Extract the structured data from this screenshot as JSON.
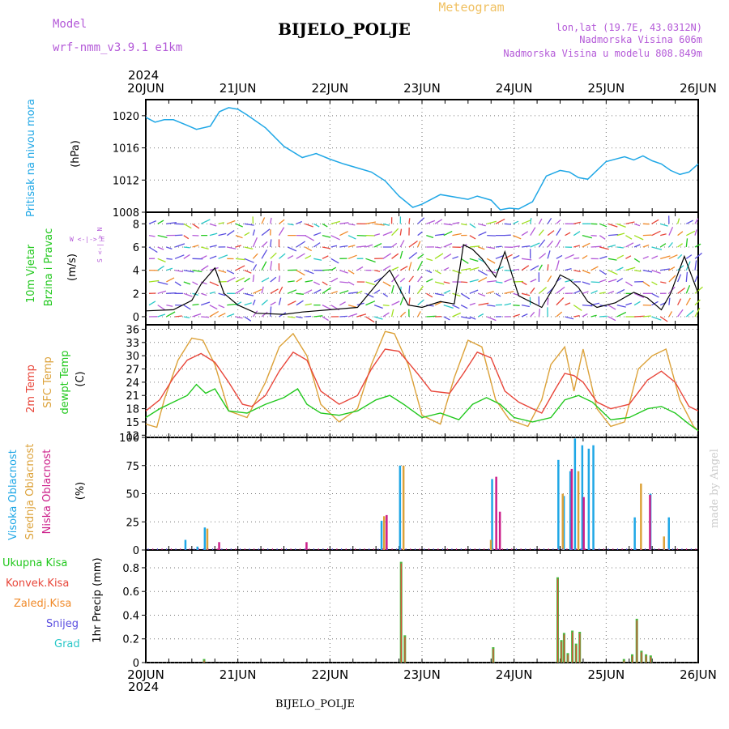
{
  "header": {
    "model_label": "Model",
    "model_name": "wrf-nmm_v3.9.1 e1km",
    "title": "BIJELO_POLJE",
    "meteogram": "Meteogram",
    "lonlat": "lon,lat (19.7E, 43.0312N)",
    "alt1": "Nadmorska Visina 606m",
    "alt2": "Nadmorska Visina u modelu 808.849m",
    "year_top": "2024",
    "year_bottom": "2024",
    "footer": "BIJELO_POLJE",
    "watermark": "made by Angel"
  },
  "colors": {
    "pressure": "#1fa7e6",
    "temp2m": "#e8463a",
    "sfc": "#dca23a",
    "dew": "#22c81e",
    "high": "#5a4ee0",
    "mid": "#dca23a",
    "low": "#cc1f8a",
    "rain_total": "#4cb840",
    "rain_conv": "#e8463a",
    "freezing": "#f08a2a",
    "snow": "#5a4ee0",
    "hail": "#2ac8c8",
    "model": "#b45ad8"
  },
  "chart_data": [
    {
      "type": "line",
      "panel": "pressure",
      "ylabel_1": "Pritisak na nivou mora",
      "ylabel_2": "(hPa)",
      "x_ticks": [
        "20JUN",
        "21JUN",
        "22JUN",
        "23JUN",
        "24JUN",
        "25JUN",
        "26JUN"
      ],
      "ylim": [
        1008,
        1022
      ],
      "yticks": [
        1008,
        1012,
        1016,
        1020
      ],
      "series": [
        {
          "x": [
            0,
            0.1,
            0.2,
            0.3,
            0.45,
            0.55,
            0.7,
            0.8,
            0.9,
            1.0,
            1.1,
            1.3,
            1.5,
            1.7,
            1.85,
            2.0,
            2.15,
            2.3,
            2.45,
            2.6,
            2.75,
            2.9,
            3.0,
            3.2,
            3.4,
            3.5,
            3.6,
            3.75,
            3.85,
            3.95,
            4.05,
            4.2,
            4.35,
            4.5,
            4.6,
            4.7,
            4.8,
            5.0,
            5.2,
            5.3,
            5.4,
            5.5,
            5.6,
            5.7,
            5.8,
            5.9,
            6.0
          ],
          "values": [
            1019.8,
            1019.2,
            1019.5,
            1019.5,
            1018.8,
            1018.3,
            1018.7,
            1020.5,
            1021,
            1020.8,
            1020.1,
            1018.5,
            1016.2,
            1014.8,
            1015.3,
            1014.6,
            1014.0,
            1013.5,
            1013.0,
            1011.9,
            1010.0,
            1008.6,
            1009.0,
            1010.2,
            1009.8,
            1009.6,
            1010.0,
            1009.5,
            1008.3,
            1008.5,
            1008.4,
            1009.3,
            1012.5,
            1013.2,
            1013.0,
            1012.3,
            1012.1,
            1014.3,
            1014.9,
            1014.5,
            1015.0,
            1014.4,
            1014.0,
            1013.2,
            1012.7,
            1013.0,
            1014.0
          ]
        }
      ]
    },
    {
      "type": "line",
      "panel": "wind",
      "ylabel_1": "10m Vjetar",
      "ylabel_2": "Brzina i Pravac",
      "ylabel_3": "(m/s)",
      "compass": "W <-|-> E",
      "compass_ns": "S <-|-> N",
      "ylim": [
        -0.7,
        9
      ],
      "yticks": [
        0,
        2,
        4,
        6,
        8
      ],
      "series": [
        {
          "x": [
            0,
            0.3,
            0.5,
            0.6,
            0.75,
            0.85,
            1.0,
            1.2,
            1.5,
            1.7,
            2.0,
            2.3,
            2.55,
            2.65,
            2.75,
            2.85,
            3.0,
            3.2,
            3.35,
            3.45,
            3.55,
            3.65,
            3.8,
            3.9,
            4.05,
            4.3,
            4.45,
            4.5,
            4.6,
            4.7,
            4.8,
            4.9,
            5.1,
            5.3,
            5.45,
            5.6,
            5.7,
            5.85,
            6.0
          ],
          "values": [
            0.5,
            0.6,
            1.4,
            2.8,
            4.2,
            2.0,
            1.0,
            0.3,
            0.2,
            0.4,
            0.6,
            0.8,
            3.2,
            4.0,
            2.5,
            1.0,
            0.8,
            1.3,
            1.1,
            6.2,
            5.8,
            5.0,
            3.4,
            5.6,
            1.8,
            0.8,
            2.8,
            3.6,
            3.2,
            2.5,
            1.3,
            0.8,
            1.2,
            2.1,
            1.6,
            0.6,
            2.0,
            5.2,
            2.0
          ]
        }
      ]
    },
    {
      "type": "line",
      "panel": "temperature",
      "ylabel_1": "2m Temp",
      "ylabel_2": "SFC Temp",
      "ylabel_3": "dewpt Temp",
      "ylabel_4": "(C)",
      "ylim": [
        11.5,
        37
      ],
      "yticks": [
        12,
        15,
        18,
        21,
        24,
        27,
        30,
        33,
        36
      ],
      "series": [
        {
          "name": "2m Temp",
          "x": [
            0,
            0.15,
            0.3,
            0.45,
            0.6,
            0.75,
            0.9,
            1.05,
            1.15,
            1.3,
            1.45,
            1.6,
            1.75,
            1.9,
            2.1,
            2.3,
            2.45,
            2.6,
            2.75,
            2.95,
            3.1,
            3.3,
            3.45,
            3.6,
            3.75,
            3.9,
            4.05,
            4.3,
            4.45,
            4.55,
            4.65,
            4.75,
            4.9,
            5.05,
            5.25,
            5.45,
            5.6,
            5.75,
            5.9,
            6.0
          ],
          "values": [
            17.5,
            20.0,
            25.0,
            29.0,
            30.5,
            28.5,
            24.0,
            19.0,
            18.5,
            21.0,
            26.5,
            30.8,
            29.0,
            22.0,
            19.0,
            21.0,
            27.0,
            31.5,
            31.0,
            26.0,
            22.0,
            21.5,
            26.0,
            30.8,
            29.5,
            22.0,
            19.5,
            17.0,
            22.5,
            26.0,
            25.5,
            24.0,
            19.5,
            18.0,
            19.0,
            24.5,
            26.5,
            24.0,
            18.5,
            17.5
          ]
        },
        {
          "name": "SFC Temp",
          "x": [
            0,
            0.12,
            0.2,
            0.35,
            0.5,
            0.62,
            0.75,
            0.9,
            1.1,
            1.3,
            1.45,
            1.6,
            1.75,
            1.9,
            2.1,
            2.3,
            2.45,
            2.6,
            2.7,
            2.85,
            3.0,
            3.2,
            3.35,
            3.5,
            3.65,
            3.8,
            3.95,
            4.15,
            4.3,
            4.4,
            4.55,
            4.65,
            4.75,
            4.9,
            5.05,
            5.2,
            5.35,
            5.5,
            5.65,
            5.8,
            5.95,
            6.0
          ],
          "values": [
            14.5,
            13.8,
            20.0,
            29.0,
            34.0,
            33.5,
            28.0,
            17.5,
            16.0,
            24.0,
            32.0,
            35.0,
            30.0,
            19.0,
            15.0,
            18.0,
            28.0,
            35.5,
            35.0,
            28.0,
            16.5,
            14.5,
            25.0,
            33.5,
            32.0,
            20.0,
            15.5,
            14.0,
            20.0,
            28.0,
            32.0,
            22.0,
            31.5,
            18.0,
            14.0,
            15.0,
            27.0,
            30.0,
            31.5,
            20.0,
            14.0,
            13.0
          ]
        },
        {
          "name": "dewpt Temp",
          "x": [
            0,
            0.15,
            0.3,
            0.45,
            0.55,
            0.65,
            0.75,
            0.9,
            1.1,
            1.3,
            1.5,
            1.65,
            1.75,
            1.9,
            2.1,
            2.3,
            2.5,
            2.65,
            2.8,
            3.0,
            3.2,
            3.4,
            3.55,
            3.7,
            3.85,
            4.0,
            4.2,
            4.4,
            4.55,
            4.7,
            4.85,
            5.05,
            5.25,
            5.45,
            5.6,
            5.75,
            5.9,
            6.0
          ],
          "values": [
            16.0,
            18.0,
            19.5,
            21.0,
            23.5,
            21.5,
            22.5,
            17.5,
            17.0,
            19.0,
            20.5,
            22.5,
            19.0,
            17.0,
            16.5,
            17.5,
            20.0,
            21.0,
            19.0,
            16.0,
            17.0,
            15.5,
            19.0,
            20.5,
            19.0,
            16.0,
            15.0,
            16.0,
            20.0,
            21.0,
            19.5,
            15.5,
            16.0,
            18.0,
            18.5,
            17.0,
            14.5,
            13.0
          ]
        }
      ]
    },
    {
      "type": "bar",
      "panel": "cloud",
      "ylabel_1": "Visoka Oblacnost",
      "ylabel_2": "Srednja Oblacnost",
      "ylabel_3": "Niska Oblacnost",
      "ylabel_4": "(%)",
      "ylim": [
        0,
        100
      ],
      "yticks": [
        0,
        25,
        50,
        75,
        100
      ],
      "series": [
        {
          "name": "Visoka Oblacnost",
          "x": [
            0.42,
            0.55,
            0.63,
            2.55,
            2.75,
            3.75,
            4.47,
            4.53,
            4.6,
            4.65,
            4.73,
            4.8,
            4.85,
            5.3,
            5.47,
            5.67
          ],
          "values": [
            9,
            3,
            20,
            26,
            75,
            63,
            80,
            48,
            70,
            99,
            93,
            90,
            93,
            29,
            50,
            29
          ]
        },
        {
          "name": "Srednja Oblacnost",
          "x": [
            0.64,
            2.56,
            2.77,
            3.72,
            4.5,
            4.67,
            5.35,
            5.6
          ],
          "values": [
            19,
            30,
            75,
            9,
            50,
            70,
            59,
            12
          ]
        },
        {
          "name": "Niska Oblacnost",
          "x": [
            0.75,
            1.7,
            2.57,
            3.76,
            3.8,
            4.58,
            4.71,
            5.43
          ],
          "values": [
            7,
            7,
            31,
            65,
            34,
            72,
            47,
            49
          ]
        }
      ]
    },
    {
      "type": "bar",
      "panel": "precipitation",
      "ylabel_1": "Ukupna Kisa",
      "ylabel_2": "Konvek.Kisa",
      "ylabel_3": "Zaledj.Kisa",
      "ylabel_4": "Snijeg",
      "ylabel_5": "Grad",
      "ylabel_6": "1hr Precip (mm)",
      "x_ticks": [
        "20JUN",
        "21JUN",
        "22JUN",
        "23JUN",
        "24JUN",
        "25JUN",
        "26JUN"
      ],
      "ylim": [
        0,
        0.95
      ],
      "yticks": [
        0,
        0.2,
        0.4,
        0.6,
        0.8
      ],
      "series": [
        {
          "name": "Ukupna Kisa",
          "x": [
            0.62,
            2.76,
            2.8,
            3.76,
            4.46,
            4.5,
            4.53,
            4.57,
            4.62,
            4.66,
            4.7,
            5.18,
            5.27,
            5.32,
            5.37,
            5.42,
            5.47
          ],
          "values": [
            0.03,
            0.85,
            0.23,
            0.13,
            0.72,
            0.19,
            0.25,
            0.08,
            0.27,
            0.16,
            0.26,
            0.03,
            0.07,
            0.37,
            0.1,
            0.07,
            0.06
          ]
        }
      ]
    }
  ]
}
